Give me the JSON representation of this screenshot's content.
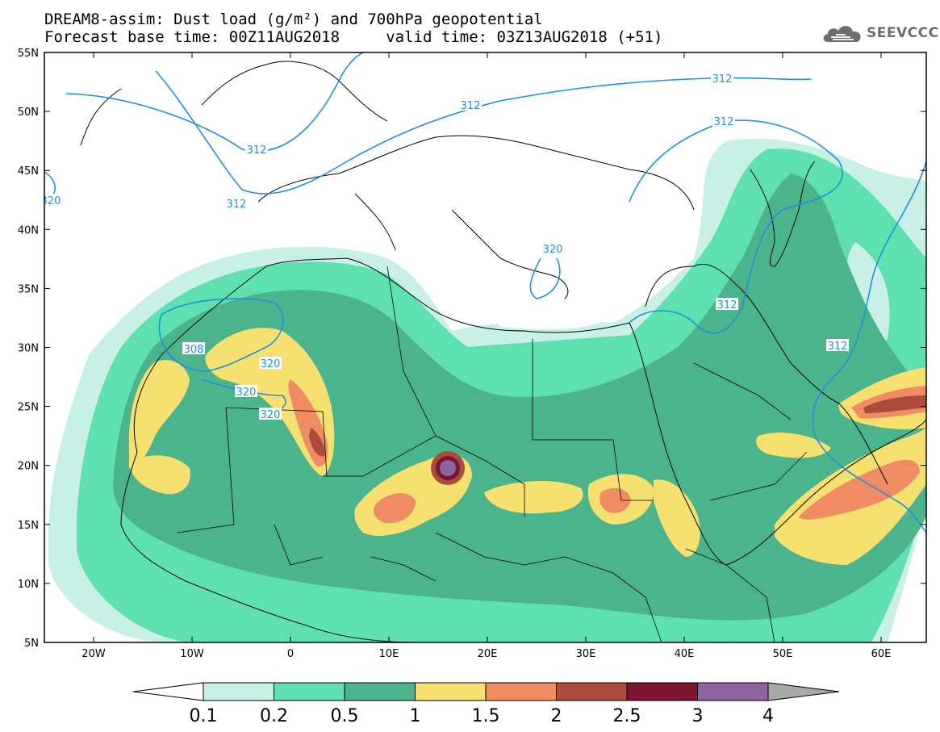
{
  "header": {
    "title_line1": "DREAM8-assim: Dust load (g/m²) and 700hPa geopotential",
    "title_line2": "Forecast base time: 00Z11AUG2018     valid time: 03Z13AUG2018 (+51)"
  },
  "logo": {
    "text": "SEEVCCC",
    "icon": "cloud-icon",
    "color": "#6e6e6e"
  },
  "map": {
    "lat_labels": [
      "55N",
      "50N",
      "45N",
      "40N",
      "35N",
      "30N",
      "25N",
      "20N",
      "15N",
      "10N",
      "5N"
    ],
    "lon_labels": [
      "20W",
      "10W",
      "0",
      "10E",
      "20E",
      "30E",
      "40E",
      "50E",
      "60E"
    ],
    "contour_labels": [
      "312",
      "312",
      "312",
      "312",
      "312",
      "308",
      "320",
      "320",
      "320",
      "320",
      "312",
      "312",
      "320"
    ],
    "contour_color": "#1e90e0"
  },
  "colorbar": {
    "labels": [
      "0.1",
      "0.2",
      "0.5",
      "1",
      "1.5",
      "2",
      "2.5",
      "3",
      "4"
    ],
    "colors": [
      "#c8f0e6",
      "#5fe0b0",
      "#4cb48c",
      "#f5e070",
      "#f08c64",
      "#aa4b3c",
      "#7d1432",
      "#8c64a0"
    ],
    "under_color": "#ffffff",
    "over_color": "#a8a8a8"
  }
}
